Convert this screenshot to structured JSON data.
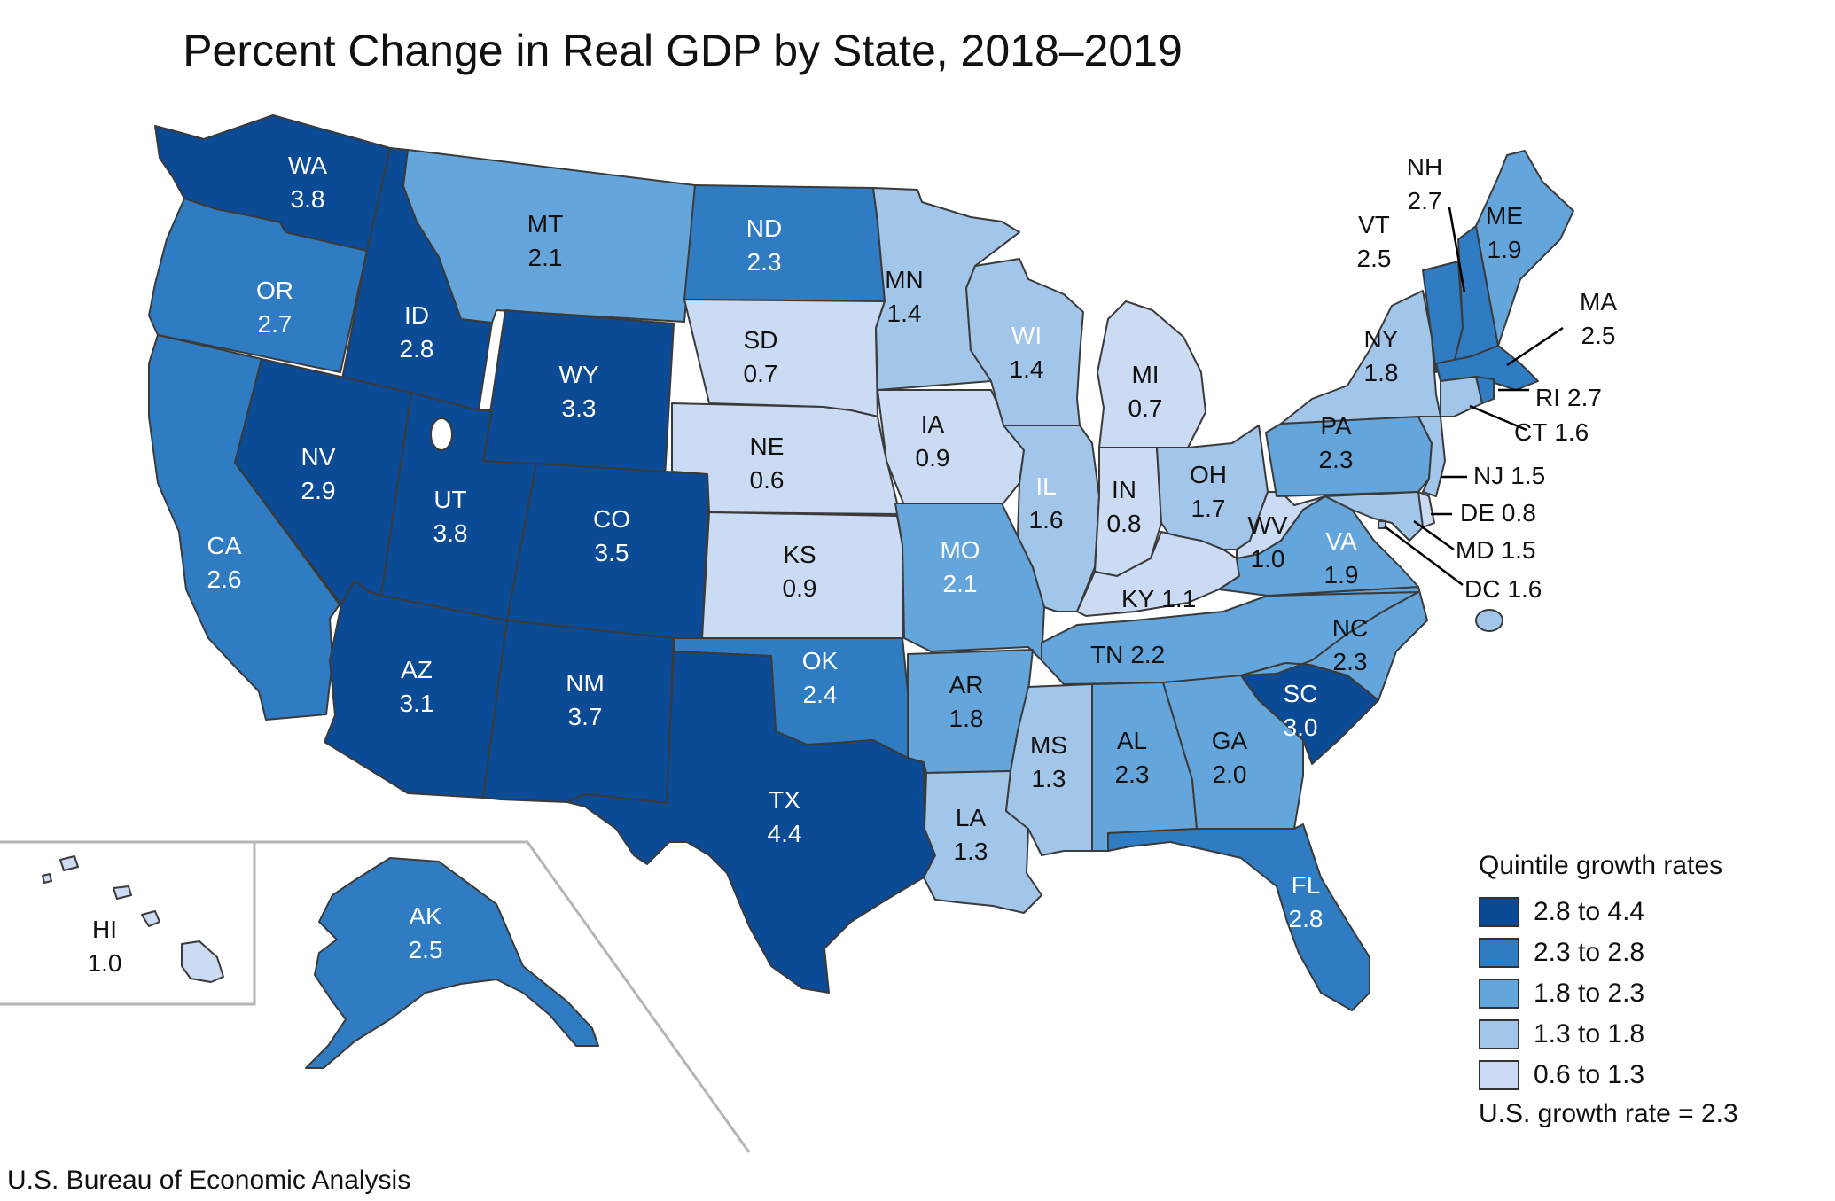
{
  "title": "Percent Change in Real GDP by State, 2018–2019",
  "source": "U.S. Bureau of Economic Analysis",
  "colors": {
    "q1": "#0b4a94",
    "q2": "#2f7cc3",
    "q3": "#64a6db",
    "q4": "#a2c5ea",
    "q5": "#cadbf3",
    "border": "#3a3a3a",
    "inset_border": "#b5b5b5"
  },
  "legend": {
    "title": "Quintile growth rates",
    "items": [
      {
        "label": "2.8 to 4.4",
        "color_key": "q1"
      },
      {
        "label": "2.3 to 2.8",
        "color_key": "q2"
      },
      {
        "label": "1.8 to 2.3",
        "color_key": "q3"
      },
      {
        "label": "1.3 to 1.8",
        "color_key": "q4"
      },
      {
        "label": "0.6 to 1.3",
        "color_key": "q5"
      }
    ],
    "us_rate": "U.S. growth rate = 2.3"
  },
  "states": {
    "WA": {
      "abbr": "WA",
      "value": "3.8",
      "quintile": "q1"
    },
    "OR": {
      "abbr": "OR",
      "value": "2.7",
      "quintile": "q2"
    },
    "CA": {
      "abbr": "CA",
      "value": "2.6",
      "quintile": "q2"
    },
    "ID": {
      "abbr": "ID",
      "value": "2.8",
      "quintile": "q1"
    },
    "NV": {
      "abbr": "NV",
      "value": "2.9",
      "quintile": "q1"
    },
    "MT": {
      "abbr": "MT",
      "value": "2.1",
      "quintile": "q3"
    },
    "WY": {
      "abbr": "WY",
      "value": "3.3",
      "quintile": "q1"
    },
    "UT": {
      "abbr": "UT",
      "value": "3.8",
      "quintile": "q1"
    },
    "AZ": {
      "abbr": "AZ",
      "value": "3.1",
      "quintile": "q1"
    },
    "CO": {
      "abbr": "CO",
      "value": "3.5",
      "quintile": "q1"
    },
    "NM": {
      "abbr": "NM",
      "value": "3.7",
      "quintile": "q1"
    },
    "ND": {
      "abbr": "ND",
      "value": "2.3",
      "quintile": "q2"
    },
    "SD": {
      "abbr": "SD",
      "value": "0.7",
      "quintile": "q5"
    },
    "NE": {
      "abbr": "NE",
      "value": "0.6",
      "quintile": "q5"
    },
    "KS": {
      "abbr": "KS",
      "value": "0.9",
      "quintile": "q5"
    },
    "OK": {
      "abbr": "OK",
      "value": "2.4",
      "quintile": "q2"
    },
    "TX": {
      "abbr": "TX",
      "value": "4.4",
      "quintile": "q1"
    },
    "MN": {
      "abbr": "MN",
      "value": "1.4",
      "quintile": "q4"
    },
    "IA": {
      "abbr": "IA",
      "value": "0.9",
      "quintile": "q5"
    },
    "MO": {
      "abbr": "MO",
      "value": "2.1",
      "quintile": "q3"
    },
    "AR": {
      "abbr": "AR",
      "value": "1.8",
      "quintile": "q3"
    },
    "LA": {
      "abbr": "LA",
      "value": "1.3",
      "quintile": "q4"
    },
    "WI": {
      "abbr": "WI",
      "value": "1.4",
      "quintile": "q4"
    },
    "IL": {
      "abbr": "IL",
      "value": "1.6",
      "quintile": "q4"
    },
    "MI": {
      "abbr": "MI",
      "value": "0.7",
      "quintile": "q5"
    },
    "IN": {
      "abbr": "IN",
      "value": "0.8",
      "quintile": "q5"
    },
    "OH": {
      "abbr": "OH",
      "value": "1.7",
      "quintile": "q4"
    },
    "KY": {
      "abbr": "KY",
      "value": "1.1",
      "quintile": "q5"
    },
    "TN": {
      "abbr": "TN",
      "value": "2.2",
      "quintile": "q3"
    },
    "MS": {
      "abbr": "MS",
      "value": "1.3",
      "quintile": "q4"
    },
    "AL": {
      "abbr": "AL",
      "value": "2.3",
      "quintile": "q3"
    },
    "GA": {
      "abbr": "GA",
      "value": "2.0",
      "quintile": "q3"
    },
    "FL": {
      "abbr": "FL",
      "value": "2.8",
      "quintile": "q2"
    },
    "SC": {
      "abbr": "SC",
      "value": "3.0",
      "quintile": "q1"
    },
    "NC": {
      "abbr": "NC",
      "value": "2.3",
      "quintile": "q3"
    },
    "VA": {
      "abbr": "VA",
      "value": "1.9",
      "quintile": "q3"
    },
    "WV": {
      "abbr": "WV",
      "value": "1.0",
      "quintile": "q5"
    },
    "PA": {
      "abbr": "PA",
      "value": "2.3",
      "quintile": "q3"
    },
    "NY": {
      "abbr": "NY",
      "value": "1.8",
      "quintile": "q4"
    },
    "VT": {
      "abbr": "VT",
      "value": "2.5",
      "quintile": "q2"
    },
    "NH": {
      "abbr": "NH",
      "value": "2.7",
      "quintile": "q2"
    },
    "ME": {
      "abbr": "ME",
      "value": "1.9",
      "quintile": "q3"
    },
    "MA": {
      "abbr": "MA",
      "value": "2.5",
      "quintile": "q2"
    },
    "RI": {
      "abbr": "RI",
      "value": "2.7",
      "quintile": "q2"
    },
    "CT": {
      "abbr": "CT",
      "value": "1.6",
      "quintile": "q4"
    },
    "NJ": {
      "abbr": "NJ",
      "value": "1.5",
      "quintile": "q4"
    },
    "DE": {
      "abbr": "DE",
      "value": "0.8",
      "quintile": "q5"
    },
    "MD": {
      "abbr": "MD",
      "value": "1.5",
      "quintile": "q4"
    },
    "DC": {
      "abbr": "DC",
      "value": "1.6",
      "quintile": "q4"
    },
    "AK": {
      "abbr": "AK",
      "value": "2.5",
      "quintile": "q2"
    },
    "HI": {
      "abbr": "HI",
      "value": "1.0",
      "quintile": "q5"
    }
  }
}
